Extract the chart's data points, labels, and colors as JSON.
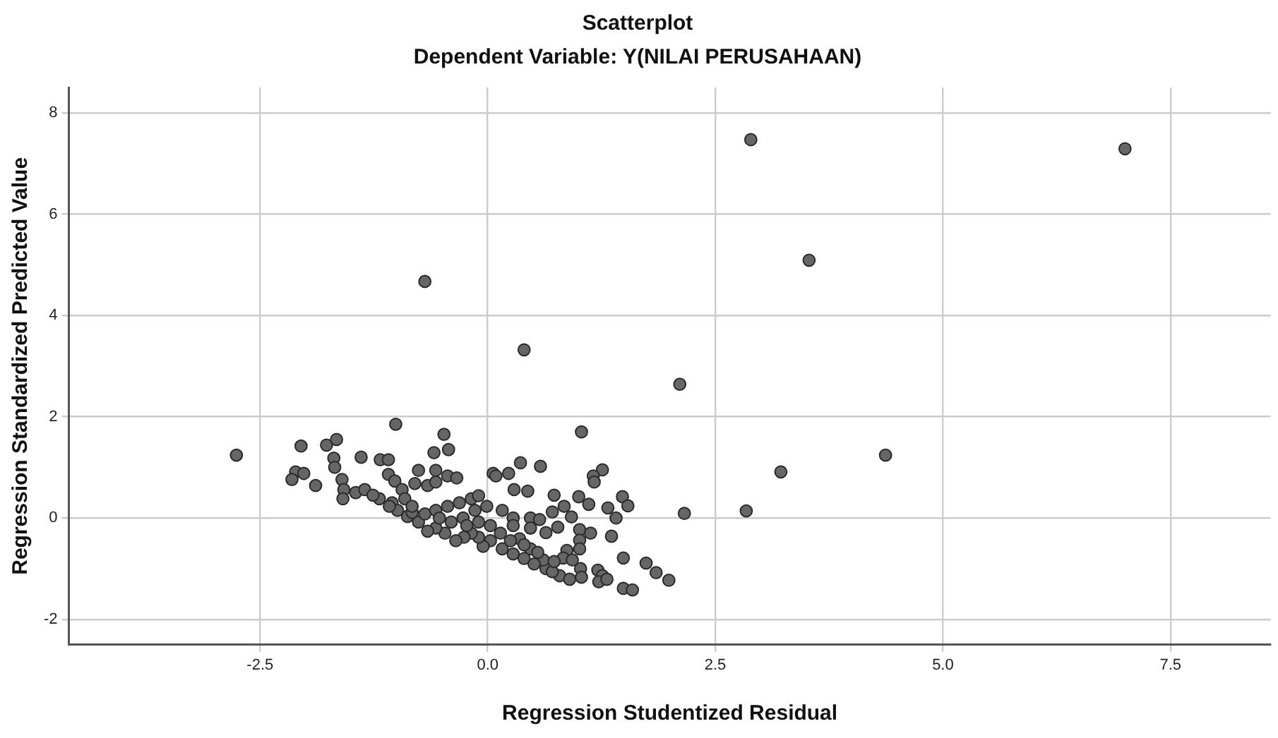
{
  "chart_data": {
    "type": "scatter",
    "title": "Scatterplot",
    "subtitle": "Dependent Variable: Y(NILAI PERUSAHAAN)",
    "xlabel": "Regression Studentized Residual",
    "ylabel": "Regression Standardized Predicted Value",
    "xlim": [
      -4.6,
      8.6
    ],
    "ylim": [
      -2.5,
      8.5
    ],
    "xticks": [
      {
        "value": -2.5,
        "label": "-2.5"
      },
      {
        "value": 0,
        "label": "0.0"
      },
      {
        "value": 2.5,
        "label": "2.5"
      },
      {
        "value": 5,
        "label": "5.0"
      },
      {
        "value": 7.5,
        "label": "7.5"
      }
    ],
    "yticks": [
      -2,
      0,
      2,
      4,
      6,
      8
    ],
    "grid": true,
    "legend": false,
    "marker": "circle",
    "series": [
      {
        "color": "#666666",
        "x": [
          -2.76,
          -0.69,
          0.4,
          2.11,
          2.89,
          3.53,
          7.0,
          4.37,
          3.22,
          2.84,
          2.16,
          -1.01,
          -2.05,
          -1.77,
          -1.66,
          -1.69,
          -1.68,
          -1.39,
          -1.18,
          -1.09,
          -2.11,
          -2.02,
          -2.15,
          -1.89,
          -1.6,
          -1.58,
          -1.59,
          -1.45,
          -1.35,
          -1.09,
          -1.02,
          -1.19,
          -1.05,
          -0.94,
          -0.76,
          -0.59,
          -0.48,
          -0.43,
          -0.57,
          -0.44,
          -0.34,
          -0.8,
          -0.66,
          -0.57,
          0.06,
          0.09,
          0.23,
          0.36,
          0.58,
          0.29,
          0.44,
          0.73,
          1.03,
          1.26,
          1.16,
          1.17,
          1.0,
          1.11,
          1.32,
          1.48,
          1.54,
          1.41,
          1.36,
          1.49,
          1.74,
          1.85,
          1.99,
          1.21,
          1.26,
          1.22,
          1.31,
          1.49,
          1.59,
          1.01,
          1.13,
          1.01,
          1.01,
          1.02,
          0.87,
          0.83,
          0.93,
          0.79,
          0.9,
          1.03,
          0.64,
          0.71,
          0.61,
          0.47,
          0.35,
          0.28,
          0.16,
          0.47,
          0.57,
          0.71,
          0.84,
          0.92,
          0.77,
          0.64,
          0.47,
          0.28,
          0.14,
          0.03,
          -0.05,
          -0.1,
          -0.18,
          -0.26,
          -0.35,
          -0.47,
          -0.57,
          -0.66,
          -0.76,
          -0.88,
          -0.99,
          -0.83,
          -0.69,
          -0.57,
          -0.44,
          -0.31,
          -0.18,
          -0.1,
          -0.01,
          -0.14,
          -0.27,
          -0.4,
          -0.53,
          -0.23,
          -0.1,
          0.03,
          0.16,
          0.28,
          0.4,
          0.51,
          0.25,
          0.4,
          0.55,
          0.73,
          -0.91,
          -0.83,
          -1.08,
          -1.26
        ],
        "values": [
          1.24,
          4.67,
          3.32,
          2.64,
          7.47,
          5.09,
          7.29,
          1.24,
          0.91,
          0.14,
          0.09,
          1.85,
          1.42,
          1.44,
          1.55,
          1.18,
          1.0,
          1.2,
          1.15,
          1.15,
          0.91,
          0.88,
          0.76,
          0.64,
          0.76,
          0.56,
          0.38,
          0.5,
          0.56,
          0.86,
          0.73,
          0.38,
          0.3,
          0.56,
          0.94,
          1.29,
          1.65,
          1.35,
          0.94,
          0.83,
          0.79,
          0.68,
          0.64,
          0.71,
          0.88,
          0.83,
          0.88,
          1.09,
          1.02,
          0.56,
          0.53,
          0.45,
          1.7,
          0.95,
          0.83,
          0.71,
          0.42,
          0.27,
          0.2,
          0.42,
          0.24,
          0.0,
          -0.36,
          -0.79,
          -0.89,
          -1.08,
          -1.23,
          -1.03,
          -1.14,
          -1.26,
          -1.21,
          -1.39,
          -1.42,
          -0.23,
          -0.3,
          -0.44,
          -0.61,
          -1.0,
          -0.64,
          -0.79,
          -0.83,
          -1.14,
          -1.21,
          -1.17,
          -1.0,
          -1.06,
          -0.83,
          -0.61,
          -0.41,
          0.0,
          0.15,
          0.0,
          -0.03,
          0.12,
          0.23,
          0.02,
          -0.18,
          -0.29,
          -0.2,
          -0.15,
          -0.3,
          -0.45,
          -0.56,
          -0.38,
          -0.3,
          -0.38,
          -0.45,
          -0.3,
          -0.2,
          -0.26,
          -0.08,
          0.03,
          0.15,
          0.11,
          0.08,
          0.15,
          0.23,
          0.3,
          0.38,
          0.44,
          0.23,
          0.15,
          0.0,
          -0.08,
          0.0,
          -0.15,
          -0.08,
          -0.15,
          -0.61,
          -0.71,
          -0.8,
          -0.91,
          -0.45,
          -0.53,
          -0.68,
          -0.86,
          0.38,
          0.23,
          0.23,
          0.45
        ]
      }
    ]
  }
}
